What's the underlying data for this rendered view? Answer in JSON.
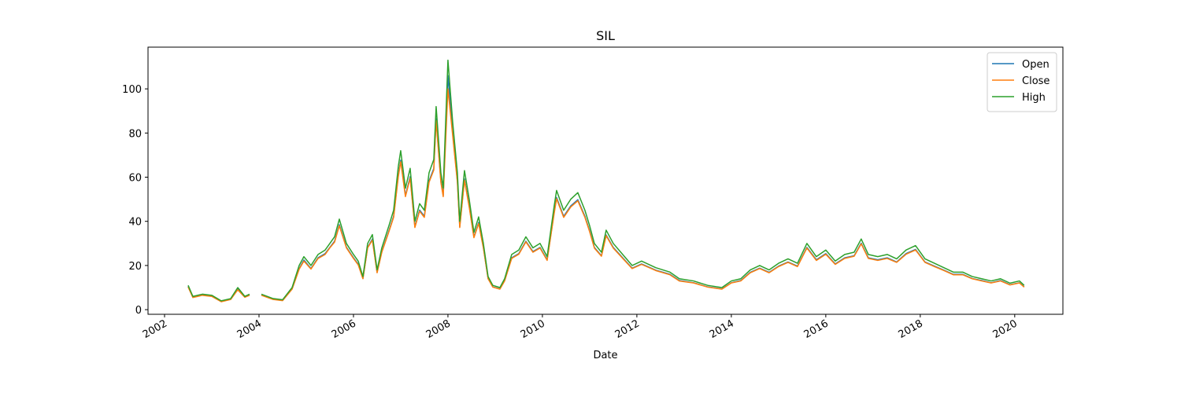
{
  "chart_data": {
    "type": "line",
    "title": "SIL",
    "x_label": "Date",
    "x": [
      2002.5,
      2002.6,
      2002.8,
      2003.0,
      2003.2,
      2003.4,
      2003.55,
      2003.7,
      2003.8,
      2003.9,
      2004.05,
      2004.3,
      2004.5,
      2004.7,
      2004.85,
      2004.95,
      2005.1,
      2005.25,
      2005.4,
      2005.5,
      2005.6,
      2005.7,
      2005.85,
      2006.0,
      2006.1,
      2006.2,
      2006.3,
      2006.4,
      2006.5,
      2006.6,
      2006.75,
      2006.85,
      2006.95,
      2007.0,
      2007.1,
      2007.2,
      2007.3,
      2007.4,
      2007.5,
      2007.6,
      2007.7,
      2007.75,
      2007.85,
      2007.9,
      2008.0,
      2008.1,
      2008.2,
      2008.25,
      2008.35,
      2008.45,
      2008.55,
      2008.65,
      2008.75,
      2008.85,
      2008.95,
      2009.1,
      2009.2,
      2009.35,
      2009.5,
      2009.65,
      2009.8,
      2009.95,
      2010.1,
      2010.25,
      2010.3,
      2010.45,
      2010.6,
      2010.75,
      2010.9,
      2011.0,
      2011.1,
      2011.25,
      2011.35,
      2011.5,
      2011.7,
      2011.9,
      2012.1,
      2012.4,
      2012.7,
      2012.9,
      2013.2,
      2013.5,
      2013.8,
      2014.0,
      2014.2,
      2014.4,
      2014.6,
      2014.8,
      2015.0,
      2015.2,
      2015.4,
      2015.6,
      2015.8,
      2016.0,
      2016.2,
      2016.4,
      2016.6,
      2016.75,
      2016.9,
      2017.1,
      2017.3,
      2017.5,
      2017.7,
      2017.9,
      2018.1,
      2018.3,
      2018.5,
      2018.7,
      2018.9,
      2019.1,
      2019.3,
      2019.5,
      2019.7,
      2019.9,
      2020.1,
      2020.2
    ],
    "series": [
      {
        "name": "Open",
        "color": "#1f77b4",
        "values": [
          10.5,
          5.6,
          6.6,
          6.1,
          3.7,
          4.7,
          9.2,
          5.7,
          6.6,
          null,
          6.6,
          4.7,
          4.2,
          9.4,
          18.5,
          22.5,
          18.6,
          23.5,
          25.4,
          28.2,
          31,
          38.5,
          28.3,
          23.5,
          20.6,
          14.1,
          28.2,
          32,
          16.9,
          26.3,
          35.7,
          42.3,
          61,
          67.7,
          51.7,
          60.2,
          37.6,
          45.1,
          42.3,
          58.3,
          63.9,
          86.5,
          58.3,
          51.7,
          106,
          80,
          58.3,
          37.6,
          59.2,
          47,
          32.9,
          39.5,
          28.2,
          14.1,
          10.3,
          9.4,
          13.2,
          23.5,
          25.4,
          31,
          26.3,
          28.2,
          22.6,
          44.2,
          50.8,
          42.3,
          47,
          49.8,
          42.3,
          35.7,
          28.2,
          24.4,
          33.8,
          28.2,
          23.5,
          18.8,
          20.7,
          17.9,
          16,
          13.2,
          12.2,
          10.3,
          9.4,
          12.2,
          13.2,
          16.9,
          18.8,
          16.9,
          19.7,
          21.6,
          19.7,
          28.2,
          22.6,
          25.4,
          20.7,
          23.5,
          24.4,
          30.1,
          23.5,
          22.6,
          23.5,
          21.6,
          25.4,
          27.3,
          21.6,
          19.7,
          17.9,
          16,
          16,
          14.1,
          13.2,
          12.2,
          13.2,
          11.3,
          12.2,
          10.3
        ]
      },
      {
        "name": "Close",
        "color": "#ff7f0e",
        "values": [
          10.2,
          5.5,
          6.5,
          6.0,
          3.6,
          4.6,
          9.0,
          5.6,
          6.5,
          null,
          6.5,
          4.6,
          4.1,
          9.3,
          18.3,
          22,
          18.4,
          23.2,
          25,
          28,
          30.6,
          38,
          28,
          23.2,
          20.3,
          14,
          28,
          31.5,
          16.7,
          26,
          35.3,
          41.8,
          60.4,
          67,
          51.2,
          59.5,
          37.2,
          44.6,
          41.8,
          57.7,
          63.2,
          85.6,
          57.7,
          51.2,
          100,
          79,
          57.7,
          37.2,
          58.6,
          46.5,
          32.6,
          39,
          28,
          14,
          10.2,
          9.3,
          13,
          23.2,
          25.1,
          30.7,
          26,
          27.9,
          22.3,
          43.7,
          50.2,
          41.8,
          46.5,
          49.3,
          41.8,
          35.3,
          27.9,
          24.2,
          33.5,
          27.9,
          23.2,
          18.6,
          20.5,
          17.7,
          15.8,
          13,
          12.1,
          10.2,
          9.3,
          12.1,
          13,
          16.7,
          18.6,
          16.7,
          19.5,
          21.4,
          19.5,
          27.9,
          22.3,
          25.1,
          20.5,
          23.2,
          24.2,
          29.8,
          23.2,
          22.3,
          23.2,
          21.4,
          25.1,
          27,
          21.4,
          19.5,
          17.7,
          15.8,
          15.8,
          14,
          13,
          12.1,
          13,
          11.2,
          12.1,
          10.2
        ]
      },
      {
        "name": "High",
        "color": "#2ca02c",
        "values": [
          11,
          6,
          7,
          6.5,
          4,
          5,
          10,
          6,
          7,
          null,
          7,
          5,
          4.5,
          10,
          20,
          24,
          20,
          25,
          27,
          30,
          33,
          41,
          30,
          25,
          22,
          15,
          30,
          34,
          18,
          28,
          38,
          45,
          65,
          72,
          55,
          64,
          40,
          48,
          45,
          62,
          68,
          92,
          62,
          55,
          113,
          85,
          62,
          40,
          63,
          50,
          35,
          42,
          30,
          15,
          11,
          10,
          14,
          25,
          27,
          33,
          28,
          30,
          24,
          47,
          54,
          45,
          50,
          53,
          45,
          38,
          30,
          26,
          36,
          30,
          25,
          20,
          22,
          19,
          17,
          14,
          13,
          11,
          10,
          13,
          14,
          18,
          20,
          18,
          21,
          23,
          21,
          30,
          24,
          27,
          22,
          25,
          26,
          32,
          25,
          24,
          25,
          23,
          27,
          29,
          23,
          21,
          19,
          17,
          17,
          15,
          14,
          13,
          14,
          12,
          13,
          11
        ]
      }
    ],
    "xlim": [
      2001.65,
      2021.02
    ],
    "xticks": [
      2002,
      2004,
      2006,
      2008,
      2010,
      2012,
      2014,
      2016,
      2018,
      2020
    ],
    "ylim": [
      -2.1,
      118.9
    ],
    "yticks": [
      0,
      20,
      40,
      60,
      80,
      100
    ],
    "legend": "upper right",
    "grid": false
  }
}
